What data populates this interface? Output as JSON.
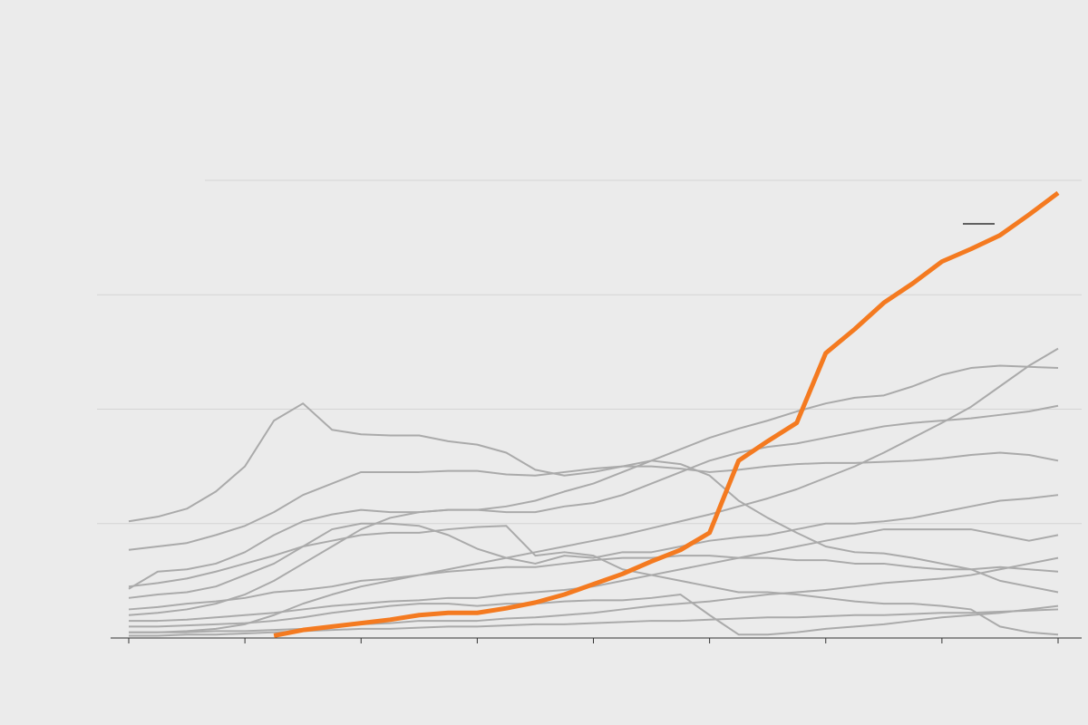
{
  "chart_data": {
    "type": "line",
    "x": [
      0,
      0.25,
      0.5,
      0.75,
      1,
      1.25,
      1.5,
      1.75,
      2,
      2.25,
      2.5,
      2.75,
      3,
      3.25,
      3.5,
      3.75,
      4,
      4.25,
      4.5,
      4.75,
      5,
      5.25,
      5.5,
      5.75,
      6,
      6.25,
      6.5,
      6.75,
      7,
      7.25,
      7.5,
      7.75,
      8
    ],
    "xlim": [
      0,
      8
    ],
    "xticks": [
      0,
      1,
      2,
      3,
      4,
      5,
      6,
      7,
      8
    ],
    "ylim": [
      0,
      4
    ],
    "yticks": [
      0,
      1,
      2,
      3,
      4
    ],
    "grid": true,
    "series": [
      {
        "color": "#aaaaaa",
        "values": [
          1.02,
          1.06,
          1.13,
          1.28,
          1.5,
          1.9,
          2.05,
          1.82,
          1.78,
          1.77,
          1.77,
          1.72,
          1.69,
          1.62,
          1.47,
          1.42,
          1.45,
          1.5,
          1.55,
          1.52,
          1.42,
          1.2,
          1.05,
          0.92,
          0.8,
          0.75,
          0.74,
          0.7,
          0.65,
          0.6,
          0.5,
          0.45,
          0.4
        ]
      },
      {
        "color": "#aaaaaa",
        "values": [
          0.05,
          0.05,
          0.06,
          0.08,
          0.12,
          0.2,
          0.3,
          0.38,
          0.45,
          0.5,
          0.55,
          0.6,
          0.65,
          0.7,
          0.75,
          0.8,
          0.85,
          0.9,
          0.96,
          1.02,
          1.08,
          1.15,
          1.22,
          1.3,
          1.4,
          1.5,
          1.62,
          1.75,
          1.88,
          2.02,
          2.2,
          2.38,
          2.53
        ]
      },
      {
        "color": "#aaaaaa",
        "values": [
          0.2,
          0.22,
          0.25,
          0.3,
          0.38,
          0.5,
          0.65,
          0.8,
          0.95,
          1.05,
          1.1,
          1.12,
          1.12,
          1.15,
          1.2,
          1.28,
          1.35,
          1.45,
          1.55,
          1.65,
          1.75,
          1.83,
          1.9,
          1.98,
          2.05,
          2.1,
          2.12,
          2.2,
          2.3,
          2.36,
          2.38,
          2.37,
          2.36
        ]
      },
      {
        "color": "#aaaaaa",
        "values": [
          0.77,
          0.8,
          0.83,
          0.9,
          0.98,
          1.1,
          1.25,
          1.35,
          1.45,
          1.45,
          1.45,
          1.46,
          1.46,
          1.43,
          1.42,
          1.45,
          1.48,
          1.5,
          1.5,
          1.48,
          1.45,
          1.47,
          1.5,
          1.52,
          1.53,
          1.53,
          1.54,
          1.55,
          1.57,
          1.6,
          1.62,
          1.6,
          1.55
        ]
      },
      {
        "color": "#aaaaaa",
        "values": [
          0.43,
          0.58,
          0.6,
          0.65,
          0.75,
          0.9,
          1.02,
          1.08,
          1.12,
          1.1,
          1.1,
          1.12,
          1.12,
          1.1,
          1.1,
          1.15,
          1.18,
          1.25,
          1.35,
          1.45,
          1.55,
          1.62,
          1.67,
          1.7,
          1.75,
          1.8,
          1.85,
          1.88,
          1.9,
          1.92,
          1.95,
          1.98,
          2.03
        ]
      },
      {
        "color": "#aaaaaa",
        "values": [
          0.35,
          0.38,
          0.4,
          0.45,
          0.55,
          0.65,
          0.8,
          0.95,
          1.0,
          1.0,
          0.98,
          0.9,
          0.78,
          0.7,
          0.65,
          0.72,
          0.7,
          0.75,
          0.75,
          0.8,
          0.85,
          0.88,
          0.9,
          0.95,
          1.0,
          1.0,
          1.02,
          1.05,
          1.1,
          1.15,
          1.2,
          1.22,
          1.25
        ]
      },
      {
        "color": "#aaaaaa",
        "values": [
          0.45,
          0.48,
          0.52,
          0.58,
          0.65,
          0.72,
          0.8,
          0.85,
          0.9,
          0.92,
          0.92,
          0.95,
          0.97,
          0.98,
          0.72,
          0.75,
          0.72,
          0.6,
          0.55,
          0.5,
          0.45,
          0.4,
          0.4,
          0.38,
          0.35,
          0.32,
          0.3,
          0.3,
          0.28,
          0.25,
          0.1,
          0.05,
          0.03
        ]
      },
      {
        "color": "#aaaaaa",
        "values": [
          0.25,
          0.27,
          0.3,
          0.32,
          0.35,
          0.4,
          0.42,
          0.45,
          0.5,
          0.52,
          0.55,
          0.58,
          0.6,
          0.62,
          0.62,
          0.65,
          0.68,
          0.7,
          0.7,
          0.72,
          0.72,
          0.7,
          0.7,
          0.68,
          0.68,
          0.65,
          0.65,
          0.62,
          0.6,
          0.6,
          0.62,
          0.6,
          0.58
        ]
      },
      {
        "color": "#aaaaaa",
        "values": [
          0.15,
          0.15,
          0.16,
          0.18,
          0.2,
          0.22,
          0.25,
          0.28,
          0.3,
          0.32,
          0.33,
          0.35,
          0.35,
          0.38,
          0.4,
          0.42,
          0.45,
          0.5,
          0.55,
          0.6,
          0.65,
          0.7,
          0.75,
          0.8,
          0.85,
          0.9,
          0.95,
          0.95,
          0.95,
          0.95,
          0.9,
          0.85,
          0.9
        ]
      },
      {
        "color": "#aaaaaa",
        "values": [
          0.05,
          0.05,
          0.05,
          0.06,
          0.06,
          0.07,
          0.08,
          0.1,
          0.12,
          0.13,
          0.15,
          0.15,
          0.15,
          0.17,
          0.18,
          0.2,
          0.22,
          0.25,
          0.28,
          0.3,
          0.32,
          0.35,
          0.38,
          0.4,
          0.42,
          0.45,
          0.48,
          0.5,
          0.52,
          0.55,
          0.6,
          0.65,
          0.7
        ]
      },
      {
        "color": "#aaaaaa",
        "values": [
          0.02,
          0.02,
          0.03,
          0.03,
          0.04,
          0.05,
          0.06,
          0.07,
          0.08,
          0.08,
          0.09,
          0.1,
          0.1,
          0.11,
          0.12,
          0.12,
          0.13,
          0.14,
          0.15,
          0.15,
          0.16,
          0.17,
          0.18,
          0.18,
          0.19,
          0.2,
          0.2,
          0.21,
          0.22,
          0.22,
          0.23,
          0.24,
          0.25
        ]
      },
      {
        "color": "#aaaaaa",
        "values": [
          0.1,
          0.1,
          0.11,
          0.12,
          0.13,
          0.15,
          0.18,
          0.22,
          0.25,
          0.28,
          0.3,
          0.3,
          0.28,
          0.3,
          0.3,
          0.32,
          0.33,
          0.33,
          0.35,
          0.38,
          0.2,
          0.03,
          0.03,
          0.05,
          0.08,
          0.1,
          0.12,
          0.15,
          0.18,
          0.2,
          0.22,
          0.25,
          0.28
        ]
      },
      {
        "color": "#f47a20",
        "values": [
          null,
          null,
          null,
          null,
          null,
          0.02,
          0.07,
          0.1,
          0.13,
          0.16,
          0.2,
          0.22,
          0.22,
          0.26,
          0.31,
          0.38,
          0.47,
          0.56,
          0.67,
          0.77,
          0.92,
          1.55,
          1.72,
          1.88,
          2.49,
          2.7,
          2.93,
          3.1,
          3.29,
          3.4,
          3.52,
          3.7,
          3.89
        ]
      }
    ]
  }
}
